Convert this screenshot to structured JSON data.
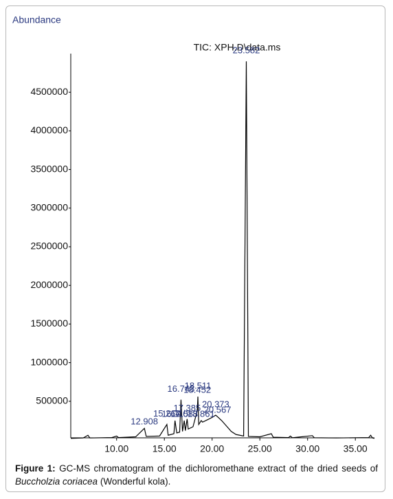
{
  "chart_data": {
    "type": "line",
    "y_label": "Abundance",
    "title": "TIC: XPH.D\\data.ms",
    "x": [
      5.2,
      6.5,
      7.0,
      7.2,
      9.5,
      10.0,
      10.2,
      12.0,
      12.908,
      13.1,
      14.5,
      15.264,
      15.4,
      16.0,
      16.115,
      16.3,
      16.6,
      16.743,
      16.9,
      17.083,
      17.2,
      17.385,
      17.5,
      18.0,
      18.452,
      18.511,
      18.6,
      18.861,
      19.0,
      19.5,
      20.0,
      20.373,
      20.567,
      21.0,
      21.5,
      22.0,
      22.5,
      23.3,
      23.582,
      23.8,
      25.0,
      26.2,
      26.4,
      28.0,
      28.2,
      28.4,
      30.5,
      30.7,
      33.0,
      36.4,
      36.6,
      36.8,
      37.0
    ],
    "series": [
      {
        "color": "#000000",
        "values": [
          20000,
          25000,
          60000,
          25000,
          30000,
          50000,
          30000,
          40000,
          150000,
          45000,
          50000,
          200000,
          60000,
          80000,
          250000,
          90000,
          100000,
          520000,
          110000,
          250000,
          120000,
          270000,
          140000,
          170000,
          380000,
          560000,
          200000,
          250000,
          230000,
          260000,
          290000,
          320000,
          300000,
          250000,
          180000,
          110000,
          70000,
          50000,
          4900000,
          45000,
          40000,
          80000,
          35000,
          30000,
          50000,
          28000,
          55000,
          28000,
          25000,
          30000,
          60000,
          25000,
          20000
        ]
      }
    ],
    "peak_labels": [
      12.908,
      15.264,
      16.115,
      16.743,
      17.083,
      17.385,
      18.452,
      18.511,
      18.861,
      20.373,
      20.567,
      23.582
    ],
    "peak_label_color": "#2b3a80",
    "xlim": [
      5.2,
      37
    ],
    "ylim": [
      0,
      5000000
    ],
    "xticks": [
      {
        "value": 10,
        "label": "10.00"
      },
      {
        "value": 15,
        "label": "15.00"
      },
      {
        "value": 20,
        "label": "20.00"
      },
      {
        "value": 25,
        "label": "25.00"
      },
      {
        "value": 30,
        "label": "30.00"
      },
      {
        "value": 35,
        "label": "35.00"
      }
    ],
    "yticks": [
      500000,
      1000000,
      1500000,
      2000000,
      2500000,
      3000000,
      3500000,
      4000000,
      4500000
    ],
    "grid": false
  },
  "caption": {
    "label": "Figure 1:",
    "text": " GC-MS chromatogram of the dichloromethane extract of the dried seeds of ",
    "species": "Buccholzia coriacea",
    "tail": " (Wonderful kola)."
  }
}
